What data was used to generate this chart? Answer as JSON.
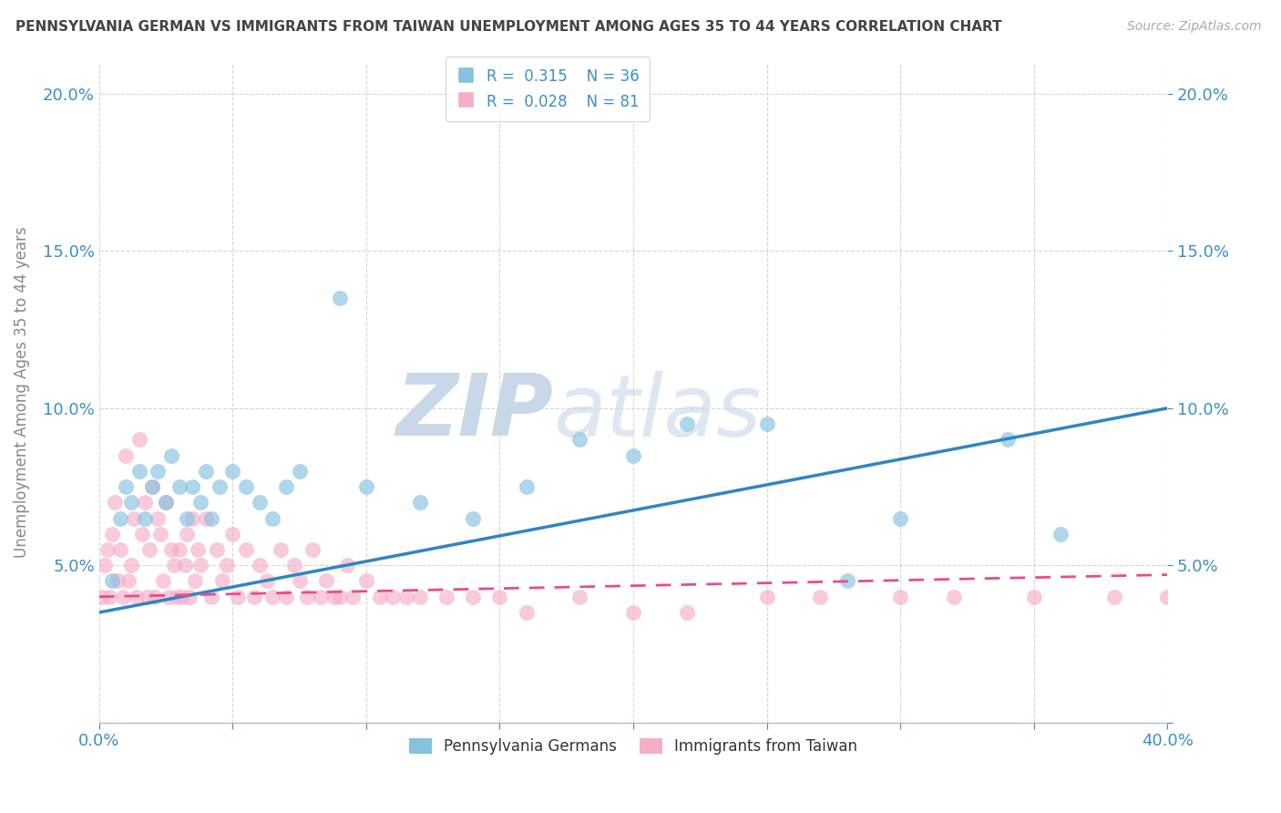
{
  "title": "PENNSYLVANIA GERMAN VS IMMIGRANTS FROM TAIWAN UNEMPLOYMENT AMONG AGES 35 TO 44 YEARS CORRELATION CHART",
  "source": "Source: ZipAtlas.com",
  "ylabel": "Unemployment Among Ages 35 to 44 years",
  "xlim": [
    0.0,
    0.4
  ],
  "ylim": [
    0.0,
    0.21
  ],
  "xticks": [
    0.0,
    0.05,
    0.1,
    0.15,
    0.2,
    0.25,
    0.3,
    0.35,
    0.4
  ],
  "yticks": [
    0.0,
    0.05,
    0.1,
    0.15,
    0.2
  ],
  "series1_color": "#85c1e0",
  "series2_color": "#f5aec8",
  "line1_color": "#2e86c1",
  "line2_color": "#e74c8b",
  "watermark_color": "#ccd9e8",
  "background_color": "#ffffff",
  "series1_x": [
    0.005,
    0.008,
    0.01,
    0.012,
    0.015,
    0.017,
    0.02,
    0.022,
    0.025,
    0.027,
    0.03,
    0.033,
    0.035,
    0.038,
    0.04,
    0.042,
    0.045,
    0.05,
    0.055,
    0.06,
    0.065,
    0.07,
    0.075,
    0.09,
    0.1,
    0.12,
    0.14,
    0.16,
    0.18,
    0.2,
    0.22,
    0.25,
    0.28,
    0.3,
    0.34,
    0.36
  ],
  "series1_y": [
    0.045,
    0.065,
    0.075,
    0.07,
    0.08,
    0.065,
    0.075,
    0.08,
    0.07,
    0.085,
    0.075,
    0.065,
    0.075,
    0.07,
    0.08,
    0.065,
    0.075,
    0.08,
    0.075,
    0.07,
    0.065,
    0.075,
    0.08,
    0.135,
    0.075,
    0.07,
    0.065,
    0.075,
    0.09,
    0.085,
    0.095,
    0.095,
    0.045,
    0.065,
    0.09,
    0.06
  ],
  "series2_x": [
    0.001,
    0.002,
    0.003,
    0.004,
    0.005,
    0.006,
    0.007,
    0.008,
    0.009,
    0.01,
    0.011,
    0.012,
    0.013,
    0.014,
    0.015,
    0.016,
    0.017,
    0.018,
    0.019,
    0.02,
    0.021,
    0.022,
    0.023,
    0.024,
    0.025,
    0.026,
    0.027,
    0.028,
    0.029,
    0.03,
    0.031,
    0.032,
    0.033,
    0.034,
    0.035,
    0.036,
    0.037,
    0.038,
    0.04,
    0.042,
    0.044,
    0.046,
    0.048,
    0.05,
    0.052,
    0.055,
    0.058,
    0.06,
    0.063,
    0.065,
    0.068,
    0.07,
    0.073,
    0.075,
    0.078,
    0.08,
    0.083,
    0.085,
    0.088,
    0.09,
    0.093,
    0.095,
    0.1,
    0.105,
    0.11,
    0.115,
    0.12,
    0.13,
    0.14,
    0.15,
    0.16,
    0.18,
    0.2,
    0.22,
    0.25,
    0.27,
    0.3,
    0.32,
    0.35,
    0.38,
    0.4
  ],
  "series2_y": [
    0.04,
    0.05,
    0.055,
    0.04,
    0.06,
    0.07,
    0.045,
    0.055,
    0.04,
    0.085,
    0.045,
    0.05,
    0.065,
    0.04,
    0.09,
    0.06,
    0.07,
    0.04,
    0.055,
    0.075,
    0.04,
    0.065,
    0.06,
    0.045,
    0.07,
    0.04,
    0.055,
    0.05,
    0.04,
    0.055,
    0.04,
    0.05,
    0.06,
    0.04,
    0.065,
    0.045,
    0.055,
    0.05,
    0.065,
    0.04,
    0.055,
    0.045,
    0.05,
    0.06,
    0.04,
    0.055,
    0.04,
    0.05,
    0.045,
    0.04,
    0.055,
    0.04,
    0.05,
    0.045,
    0.04,
    0.055,
    0.04,
    0.045,
    0.04,
    0.04,
    0.05,
    0.04,
    0.045,
    0.04,
    0.04,
    0.04,
    0.04,
    0.04,
    0.04,
    0.04,
    0.035,
    0.04,
    0.035,
    0.035,
    0.04,
    0.04,
    0.04,
    0.04,
    0.04,
    0.04,
    0.04
  ],
  "line1_x0": 0.0,
  "line1_x1": 0.4,
  "line1_y0": 0.035,
  "line1_y1": 0.1,
  "line2_x0": 0.0,
  "line2_x1": 0.4,
  "line2_y0": 0.04,
  "line2_y1": 0.047
}
